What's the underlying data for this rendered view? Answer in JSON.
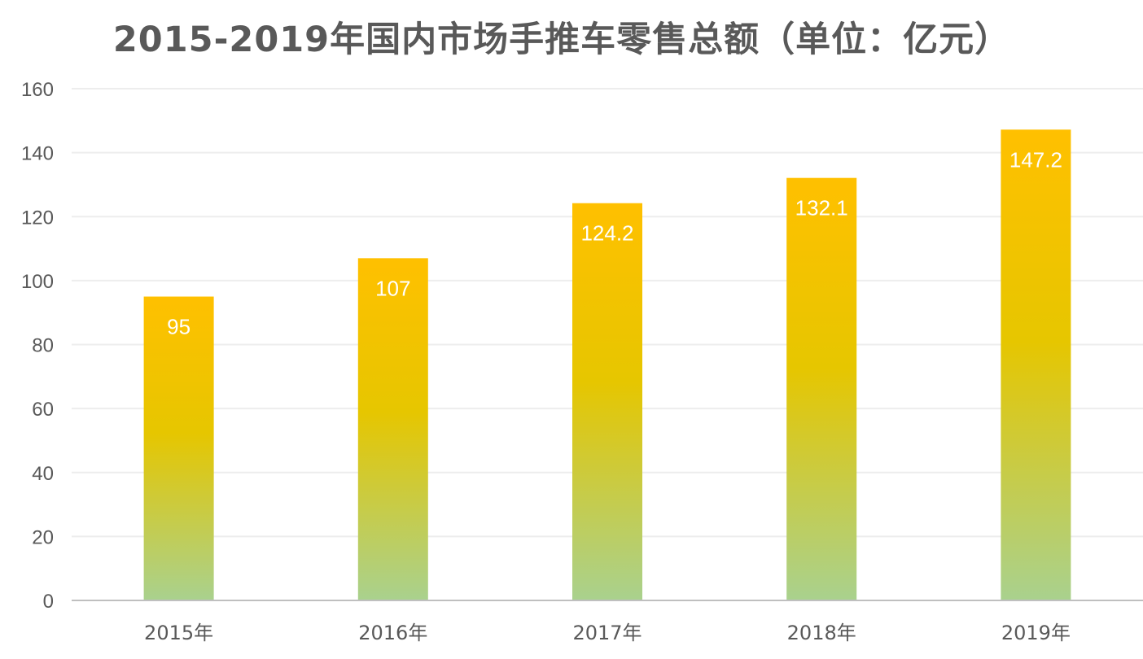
{
  "title": "2015-2019年国内市场手推车零售总额（单位：亿元）",
  "colors": {
    "bar_top": "#FFC000",
    "bar_mid": "#E6C600",
    "bar_bottom": "#A9D18E",
    "grid": "#EDEDED",
    "axis": "#BFBFBF",
    "text": "#595959",
    "label": "#FFFFFF"
  },
  "chart_data": {
    "type": "bar",
    "title": "2015-2019年国内市场手推车零售总额（单位：亿元）",
    "categories": [
      "2015年",
      "2016年",
      "2017年",
      "2018年",
      "2019年"
    ],
    "values": [
      95,
      107,
      124.2,
      132.1,
      147.2
    ],
    "value_labels": [
      "95",
      "107",
      "124.2",
      "132.1",
      "147.2"
    ],
    "ylim": [
      0,
      160
    ],
    "yticks": [
      "0",
      "20",
      "40",
      "60",
      "80",
      "100",
      "120",
      "140",
      "160"
    ],
    "xlabel": "",
    "ylabel": "",
    "grid": true,
    "legend": "none"
  }
}
